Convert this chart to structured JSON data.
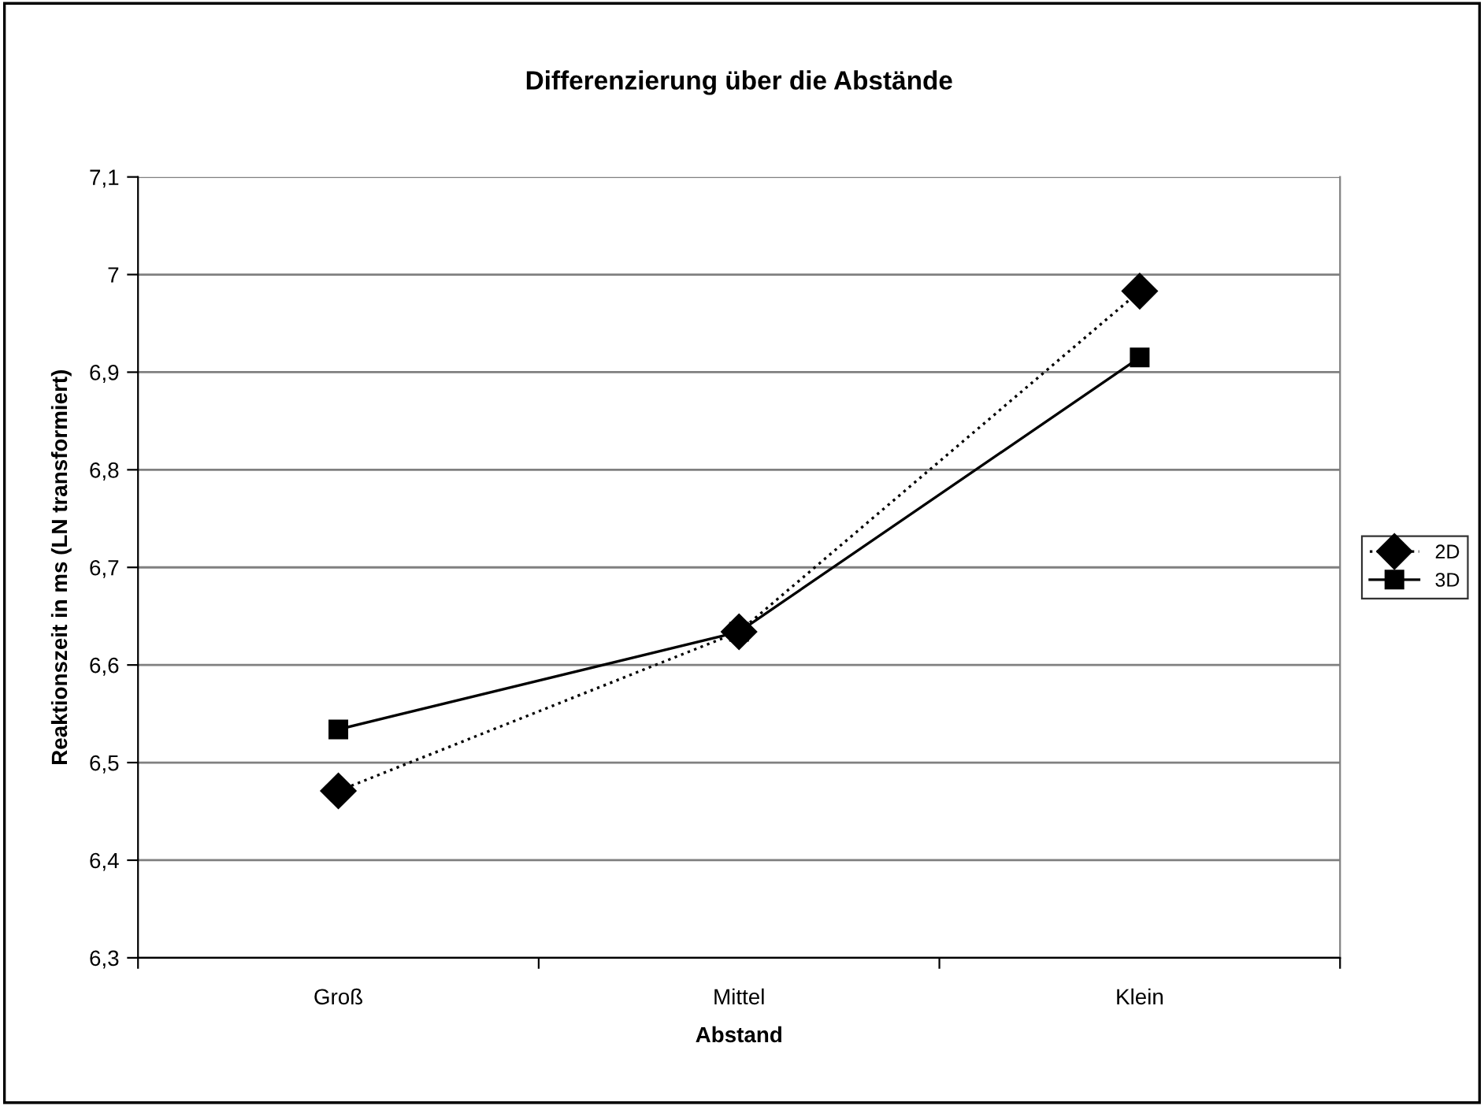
{
  "chart_data": {
    "type": "line",
    "title": "Differenzierung über die Abstände",
    "xlabel": "Abstand",
    "ylabel": "Reaktionszeit in ms (LN transformiert)",
    "categories": [
      "Groß",
      "Mittel",
      "Klein"
    ],
    "series": [
      {
        "name": "2D",
        "color": "#000000",
        "values": [
          6.471,
          6.634,
          6.983
        ],
        "marker": "diamond",
        "line_style": "dotted"
      },
      {
        "name": "3D",
        "color": "#000000",
        "values": [
          6.534,
          6.634,
          6.915
        ],
        "marker": "square",
        "line_style": "solid"
      }
    ],
    "ylim": [
      6.3,
      7.1
    ],
    "yticks": [
      {
        "value": 6.3,
        "label": "6,3"
      },
      {
        "value": 6.4,
        "label": "6,4"
      },
      {
        "value": 6.5,
        "label": "6,5"
      },
      {
        "value": 6.6,
        "label": "6,6"
      },
      {
        "value": 6.7,
        "label": "6,7"
      },
      {
        "value": 6.8,
        "label": "6,8"
      },
      {
        "value": 6.9,
        "label": "6,9"
      },
      {
        "value": 7.0,
        "label": "7"
      },
      {
        "value": 7.1,
        "label": "7,1"
      }
    ],
    "grid": "y",
    "legend": "right"
  }
}
